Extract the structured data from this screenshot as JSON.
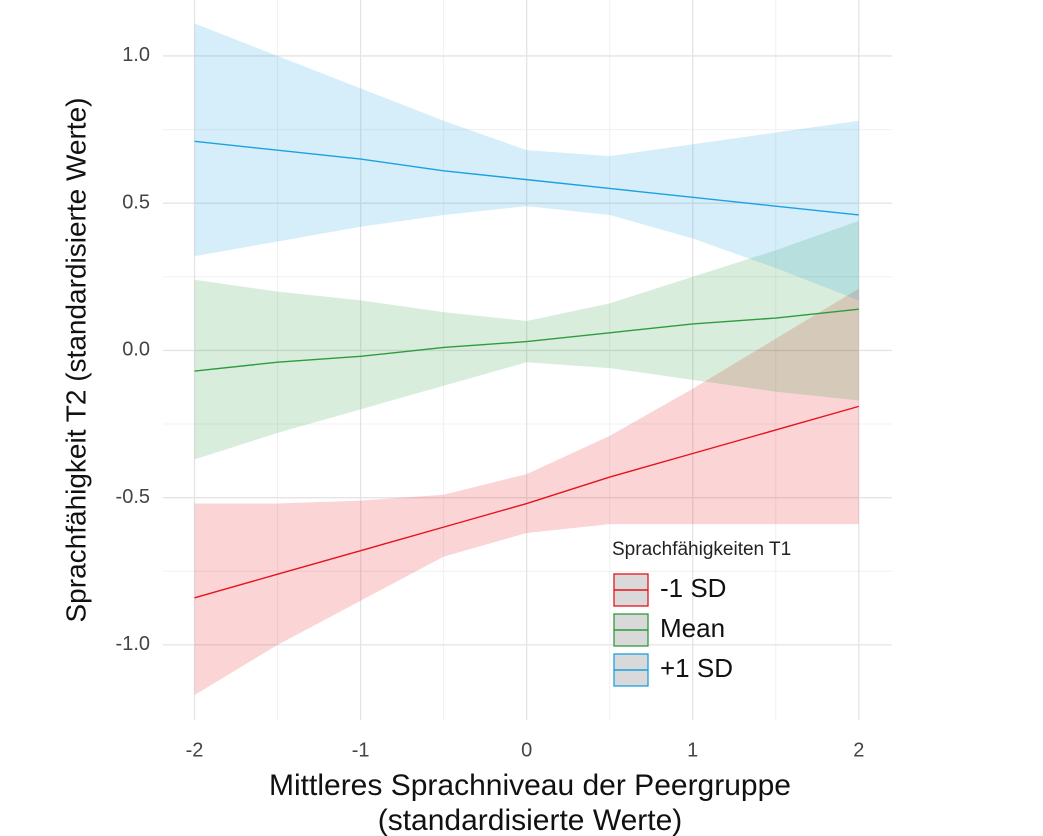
{
  "chart_data": {
    "type": "line",
    "xlabel": [
      "Mittleres Sprachniveau der Peergruppe",
      "(standardisierte Werte)"
    ],
    "ylabel": "Sprachfähigkeit T2 (standardisierte Werte)",
    "legend_title": "Sprachfähigkeiten T1",
    "legend": "bottom-right",
    "grid": true,
    "x": [
      -2,
      -1.5,
      -1,
      -0.5,
      0,
      0.5,
      1,
      1.5,
      2
    ],
    "xlim": [
      -2.19,
      2.2
    ],
    "ylim": [
      -1.255,
      1.19
    ],
    "xticks": [
      -2,
      -1,
      0,
      1,
      2
    ],
    "yticks": [
      {
        "value": -1,
        "label": "-1.0"
      },
      -0.5,
      {
        "value": 0,
        "label": "0.0"
      },
      0.5,
      {
        "value": 1,
        "label": "1.0"
      }
    ],
    "xminor": [
      -1.5,
      -0.5,
      0.5,
      1.5
    ],
    "yminor": [
      -0.75,
      -0.25,
      0.25,
      0.75
    ],
    "series": [
      {
        "name": "-1 SD",
        "color": "#e8121e",
        "values": [
          -0.84,
          -0.76,
          -0.68,
          -0.6,
          -0.52,
          -0.43,
          -0.35,
          -0.27,
          -0.19
        ],
        "upper": [
          -0.52,
          -0.52,
          -0.51,
          -0.49,
          -0.42,
          -0.29,
          -0.13,
          0.04,
          0.21
        ],
        "lower": [
          -1.17,
          -1.0,
          -0.85,
          -0.7,
          -0.62,
          -0.59,
          -0.59,
          -0.59,
          -0.59
        ]
      },
      {
        "name": "Mean",
        "color": "#2e9b3e",
        "values": [
          -0.07,
          -0.04,
          -0.02,
          0.01,
          0.03,
          0.06,
          0.09,
          0.11,
          0.14
        ],
        "upper": [
          0.24,
          0.2,
          0.17,
          0.13,
          0.1,
          0.16,
          0.25,
          0.34,
          0.44
        ],
        "lower": [
          -0.37,
          -0.28,
          -0.2,
          -0.12,
          -0.04,
          -0.06,
          -0.1,
          -0.14,
          -0.17
        ]
      },
      {
        "name": "+1 SD",
        "color": "#1ba1e2",
        "values": [
          0.71,
          0.68,
          0.65,
          0.61,
          0.58,
          0.55,
          0.52,
          0.49,
          0.46
        ],
        "upper": [
          1.11,
          1.0,
          0.89,
          0.78,
          0.68,
          0.66,
          0.7,
          0.74,
          0.78
        ],
        "lower": [
          0.32,
          0.37,
          0.42,
          0.46,
          0.49,
          0.46,
          0.38,
          0.28,
          0.17
        ]
      }
    ]
  }
}
